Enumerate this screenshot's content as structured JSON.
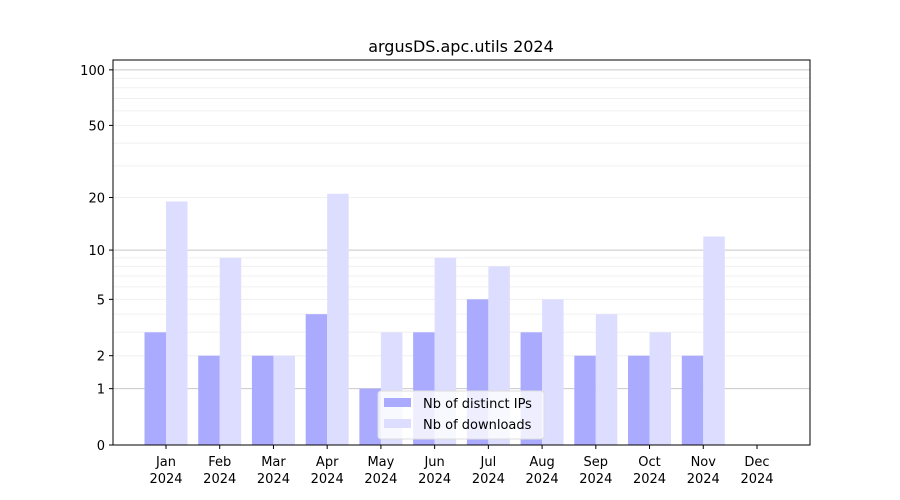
{
  "chart_data": {
    "type": "bar",
    "title": "argusDS.apc.utils 2024",
    "xlabel": "",
    "ylabel": "",
    "yscale": "log(1+y)",
    "ylim": [
      0,
      113
    ],
    "yticks": [
      0,
      1,
      2,
      5,
      10,
      20,
      50,
      100
    ],
    "grid": true,
    "legend_placement": "lower center",
    "categories": [
      "Jan\n2024",
      "Feb\n2024",
      "Mar\n2024",
      "Apr\n2024",
      "May\n2024",
      "Jun\n2024",
      "Jul\n2024",
      "Aug\n2024",
      "Sep\n2024",
      "Oct\n2024",
      "Nov\n2024",
      "Dec\n2024"
    ],
    "series": [
      {
        "name": "Nb of distinct IPs",
        "color": "#aaaaff",
        "values": [
          3,
          2,
          2,
          4,
          1,
          3,
          5,
          3,
          2,
          2,
          2,
          0
        ]
      },
      {
        "name": "Nb of downloads",
        "color": "#ddddff",
        "values": [
          19,
          9,
          2,
          21,
          3,
          9,
          8,
          5,
          4,
          3,
          12,
          0
        ]
      }
    ]
  }
}
